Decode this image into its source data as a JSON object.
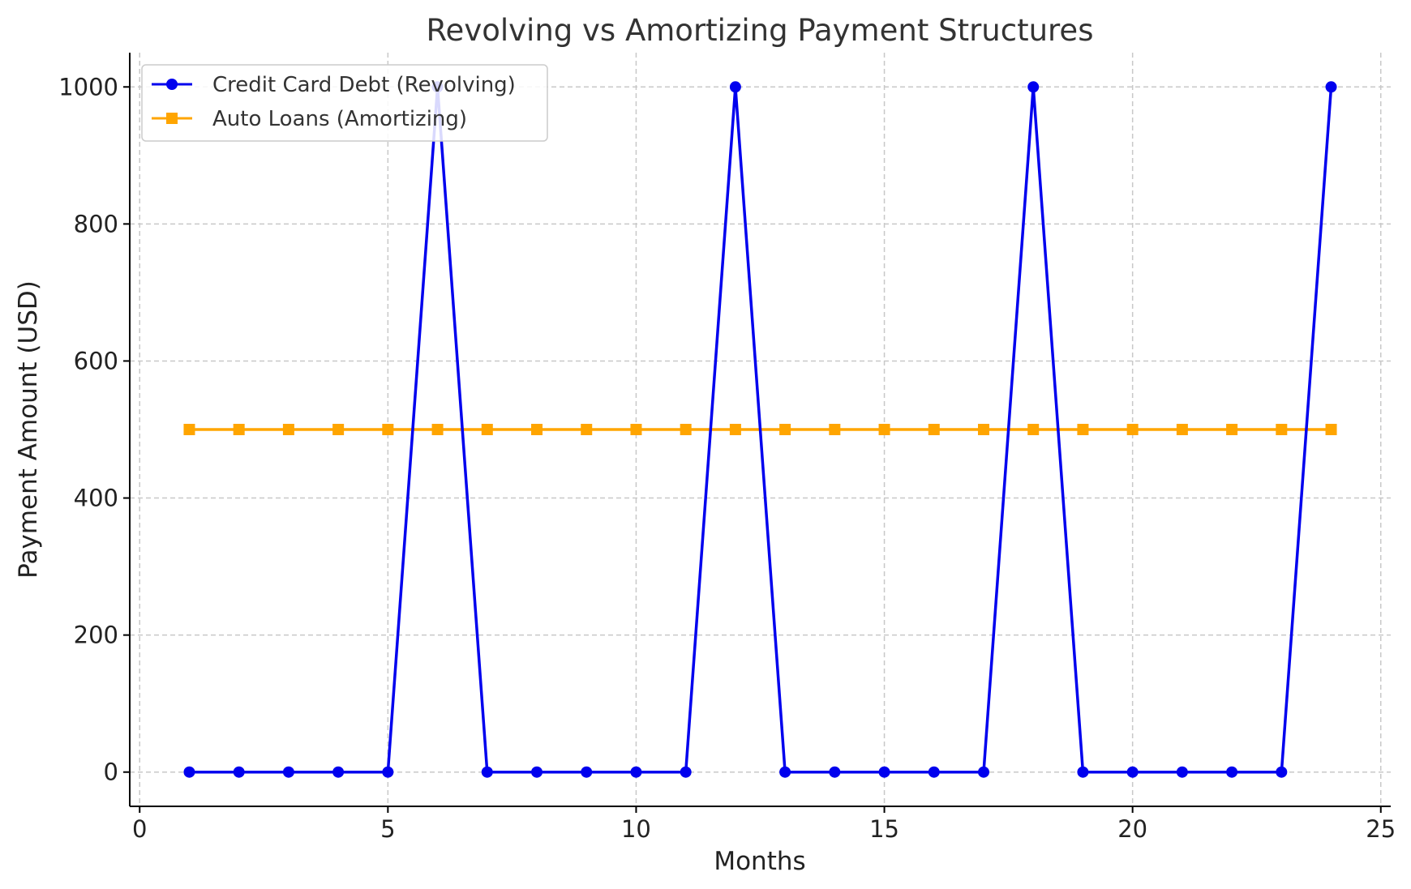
{
  "chart_data": {
    "type": "line",
    "title": "Revolving vs Amortizing Payment Structures",
    "xlabel": "Months",
    "ylabel": "Payment Amount (USD)",
    "xlim": [
      -0.2,
      25.2
    ],
    "ylim": [
      -50,
      1050
    ],
    "xticks": [
      0,
      5,
      10,
      15,
      20,
      25
    ],
    "yticks": [
      0,
      200,
      400,
      600,
      800,
      1000
    ],
    "grid": true,
    "legend_position": "top-left",
    "x": [
      1,
      2,
      3,
      4,
      5,
      6,
      7,
      8,
      9,
      10,
      11,
      12,
      13,
      14,
      15,
      16,
      17,
      18,
      19,
      20,
      21,
      22,
      23,
      24
    ],
    "series": [
      {
        "name": "Credit Card Debt (Revolving)",
        "color": "#0000ee",
        "marker": "circle",
        "values": [
          0,
          0,
          0,
          0,
          0,
          1000,
          0,
          0,
          0,
          0,
          0,
          1000,
          0,
          0,
          0,
          0,
          0,
          1000,
          0,
          0,
          0,
          0,
          0,
          1000
        ]
      },
      {
        "name": "Auto Loans (Amortizing)",
        "color": "#ffa500",
        "marker": "square",
        "values": [
          500,
          500,
          500,
          500,
          500,
          500,
          500,
          500,
          500,
          500,
          500,
          500,
          500,
          500,
          500,
          500,
          500,
          500,
          500,
          500,
          500,
          500,
          500,
          500
        ]
      }
    ]
  }
}
